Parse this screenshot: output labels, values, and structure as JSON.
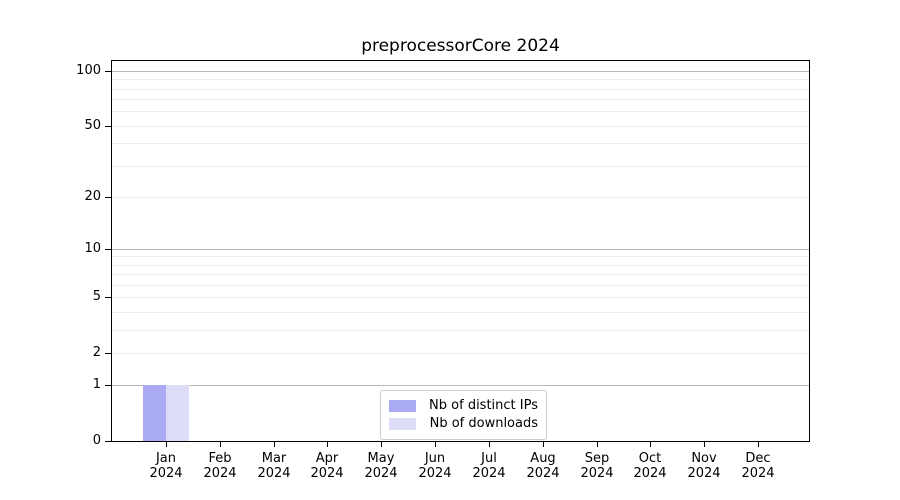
{
  "title": "preprocessorCore 2024",
  "colors": {
    "distinct_ips": "#aaaaf5",
    "downloads": "#ddddf8",
    "grid_major": "#b8b8b8",
    "grid_minor": "#ececec",
    "axis": "#000000"
  },
  "legend": {
    "items": [
      {
        "label": "Nb of distinct IPs",
        "color_key": "distinct_ips"
      },
      {
        "label": "Nb of downloads",
        "color_key": "downloads"
      }
    ]
  },
  "y_axis": {
    "tick_values": [
      0,
      1,
      2,
      5,
      10,
      20,
      50,
      100
    ],
    "major_grid_values": [
      1,
      10,
      100
    ],
    "minor_grid_values": [
      2,
      3,
      4,
      5,
      6,
      7,
      8,
      9,
      20,
      30,
      40,
      50,
      60,
      70,
      80,
      90
    ]
  },
  "x_axis": {
    "months": [
      "Jan",
      "Feb",
      "Mar",
      "Apr",
      "May",
      "Jun",
      "Jul",
      "Aug",
      "Sep",
      "Oct",
      "Nov",
      "Dec"
    ],
    "year": "2024"
  },
  "chart_data": {
    "type": "bar",
    "title": "preprocessorCore 2024",
    "categories": [
      "Jan 2024",
      "Feb 2024",
      "Mar 2024",
      "Apr 2024",
      "May 2024",
      "Jun 2024",
      "Jul 2024",
      "Aug 2024",
      "Sep 2024",
      "Oct 2024",
      "Nov 2024",
      "Dec 2024"
    ],
    "series": [
      {
        "name": "Nb of distinct IPs",
        "values": [
          1,
          0,
          0,
          0,
          0,
          0,
          0,
          0,
          0,
          0,
          0,
          0
        ]
      },
      {
        "name": "Nb of downloads",
        "values": [
          1,
          0,
          0,
          0,
          0,
          0,
          0,
          0,
          0,
          0,
          0,
          0
        ]
      }
    ],
    "yscale": "log10(1+v)",
    "ylim": [
      0,
      115
    ],
    "ytick_labels": [
      "0",
      "1",
      "2",
      "5",
      "10",
      "20",
      "50",
      "100"
    ],
    "grid": true,
    "legend_position": "lower center"
  }
}
